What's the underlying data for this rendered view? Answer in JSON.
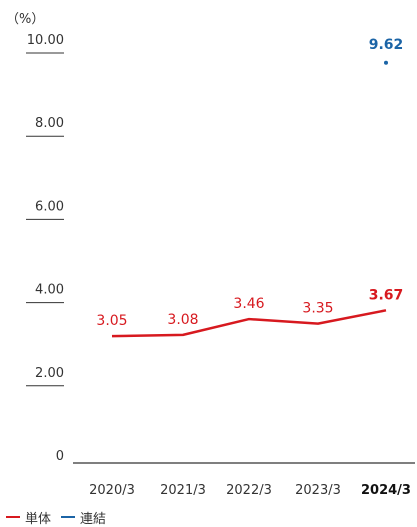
{
  "chart_data": {
    "type": "line",
    "unit_label": "（%）",
    "categories": [
      "2020/3",
      "2021/3",
      "2022/3",
      "2023/3",
      "2024/3"
    ],
    "highlight_category": "2024/3",
    "ylim": [
      0,
      10
    ],
    "yticks": [
      {
        "value": 0,
        "label": "0"
      },
      {
        "value": 2,
        "label": "2.00"
      },
      {
        "value": 4,
        "label": "4.00"
      },
      {
        "value": 6,
        "label": "6.00"
      },
      {
        "value": 8,
        "label": "8.00"
      },
      {
        "value": 10,
        "label": "10.00"
      }
    ],
    "series": [
      {
        "name": "単体",
        "color": "#d7191f",
        "values": [
          3.05,
          3.08,
          3.46,
          3.35,
          3.67
        ],
        "labels": [
          "3.05",
          "3.08",
          "3.46",
          "3.35",
          "3.67"
        ]
      },
      {
        "name": "連結",
        "color": "#1b64a6",
        "values": [
          null,
          null,
          null,
          null,
          9.62
        ],
        "labels": [
          null,
          null,
          null,
          null,
          "9.62"
        ]
      }
    ]
  },
  "legend": [
    {
      "label": "単体",
      "color": "#d7191f"
    },
    {
      "label": "連結",
      "color": "#1b64a6"
    }
  ]
}
